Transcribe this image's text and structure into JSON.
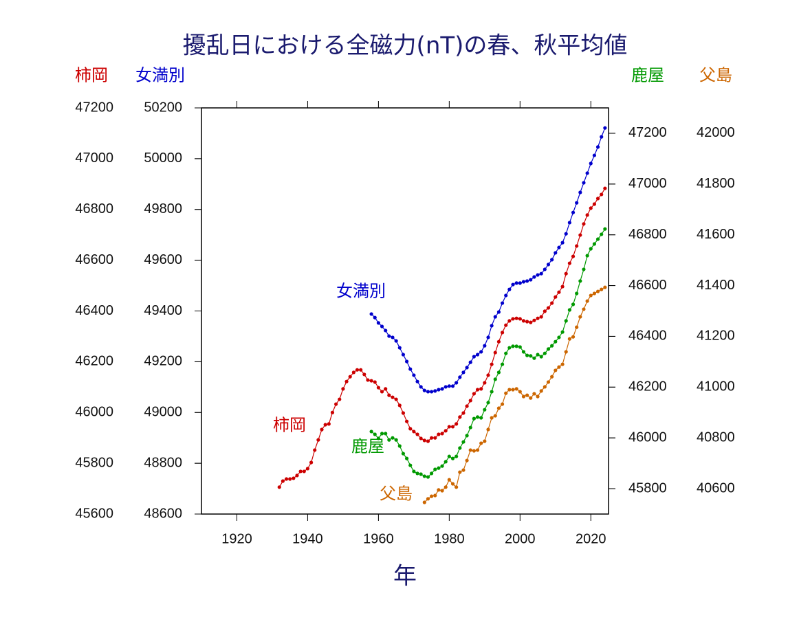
{
  "chart_data": {
    "type": "line",
    "title": "擾乱日における全磁力(nT)の春、秋平均値",
    "xlabel": "年",
    "xlim": [
      1910,
      2025
    ],
    "xticks": [
      1920,
      1940,
      1960,
      1980,
      2000,
      2020
    ],
    "y_axes": [
      {
        "side": "left",
        "ylim": [
          45600,
          47200
        ],
        "yticks": [
          45600,
          45800,
          46000,
          46200,
          46400,
          46600,
          46800,
          47000,
          47200
        ]
      },
      {
        "side": "left",
        "ylim": [
          48600,
          50200
        ],
        "yticks": [
          48600,
          48800,
          49000,
          49200,
          49400,
          49600,
          49800,
          50000,
          50200
        ]
      },
      {
        "side": "right",
        "ylim": [
          45700,
          47300
        ],
        "yticks": [
          45800,
          46000,
          46200,
          46400,
          46600,
          46800,
          47000,
          47200
        ]
      },
      {
        "side": "right",
        "ylim": [
          40500,
          42100
        ],
        "yticks": [
          40600,
          40800,
          41000,
          41200,
          41400,
          41600,
          41800,
          42000
        ]
      }
    ],
    "x": [
      1932,
      1933,
      1934,
      1935,
      1936,
      1937,
      1938,
      1939,
      1940,
      1941,
      1942,
      1943,
      1944,
      1945,
      1946,
      1947,
      1948,
      1949,
      1950,
      1951,
      1952,
      1953,
      1954,
      1955,
      1956,
      1957,
      1958,
      1959,
      1960,
      1961,
      1962,
      1963,
      1964,
      1965,
      1966,
      1967,
      1968,
      1969,
      1970,
      1971,
      1972,
      1973,
      1974,
      1975,
      1976,
      1977,
      1978,
      1979,
      1980,
      1981,
      1982,
      1983,
      1984,
      1985,
      1986,
      1987,
      1988,
      1989,
      1990,
      1991,
      1992,
      1993,
      1994,
      1995,
      1996,
      1997,
      1998,
      1999,
      2000,
      2001,
      2002,
      2003,
      2004,
      2005,
      2006,
      2007,
      2008,
      2009,
      2010,
      2011,
      2012,
      2013,
      2014,
      2015,
      2016,
      2017,
      2018,
      2019,
      2020,
      2021,
      2022,
      2023,
      2024
    ],
    "series": [
      {
        "name": "柿岡",
        "color": "#cc0000",
        "axis": 0,
        "values": [
          45706,
          45730,
          45738,
          45738,
          45741,
          45752,
          45768,
          45768,
          45779,
          45803,
          45852,
          45892,
          45933,
          45952,
          45955,
          46000,
          46033,
          46052,
          46093,
          46122,
          46141,
          46158,
          46168,
          46168,
          46150,
          46128,
          46125,
          46120,
          46098,
          46082,
          46093,
          46068,
          46060,
          46052,
          46028,
          45998,
          45965,
          45936,
          45925,
          45914,
          45898,
          45890,
          45887,
          45900,
          45900,
          45914,
          45917,
          45928,
          45944,
          45944,
          45955,
          45982,
          45998,
          46025,
          46047,
          46074,
          46090,
          46093,
          46117,
          46147,
          46190,
          46236,
          46279,
          46315,
          46344,
          46361,
          46369,
          46371,
          46369,
          46361,
          46358,
          46355,
          46363,
          46371,
          46377,
          46399,
          46412,
          46431,
          46455,
          46474,
          46496,
          46547,
          46588,
          46615,
          46656,
          46699,
          46743,
          46778,
          46805,
          46821,
          46843,
          46859,
          46883
        ]
      },
      {
        "name": "女満別",
        "color": "#0000cc",
        "axis": 1,
        "values": [
          null,
          null,
          null,
          null,
          null,
          null,
          null,
          null,
          null,
          null,
          null,
          null,
          null,
          null,
          null,
          null,
          null,
          null,
          null,
          null,
          null,
          null,
          null,
          null,
          null,
          null,
          49388,
          49374,
          49353,
          49339,
          49323,
          49301,
          49296,
          49282,
          49255,
          49228,
          49201,
          49171,
          49147,
          49122,
          49101,
          49087,
          49082,
          49082,
          49085,
          49090,
          49093,
          49101,
          49104,
          49104,
          49117,
          49139,
          49158,
          49177,
          49198,
          49220,
          49228,
          49239,
          49263,
          49296,
          49342,
          49377,
          49396,
          49431,
          49461,
          49485,
          49504,
          49510,
          49510,
          49515,
          49518,
          49523,
          49534,
          49542,
          49547,
          49564,
          49583,
          49602,
          49629,
          49650,
          49669,
          49704,
          49748,
          49788,
          49826,
          49867,
          49905,
          49943,
          49981,
          50013,
          50046,
          50086,
          50121
        ]
      },
      {
        "name": "鹿屋",
        "color": "#009900",
        "axis": 2,
        "values": [
          null,
          null,
          null,
          null,
          null,
          null,
          null,
          null,
          null,
          null,
          null,
          null,
          null,
          null,
          null,
          null,
          null,
          null,
          null,
          null,
          null,
          null,
          null,
          null,
          null,
          null,
          46025,
          46014,
          45998,
          46017,
          46017,
          45992,
          46000,
          45992,
          45968,
          45938,
          45919,
          45892,
          45868,
          45860,
          45857,
          45849,
          45846,
          45860,
          45876,
          45881,
          45889,
          45906,
          45927,
          45919,
          45927,
          45960,
          45984,
          46009,
          46041,
          46076,
          46082,
          46079,
          46111,
          46139,
          46182,
          46231,
          46258,
          46290,
          46333,
          46355,
          46361,
          46361,
          46358,
          46339,
          46325,
          46323,
          46314,
          46328,
          46320,
          46333,
          46350,
          46363,
          46379,
          46396,
          46417,
          46461,
          46504,
          46526,
          46569,
          46618,
          46664,
          46718,
          46745,
          46764,
          46783,
          46802,
          46823
        ]
      },
      {
        "name": "父島",
        "color": "#cc6600",
        "axis": 3,
        "values": [
          null,
          null,
          null,
          null,
          null,
          null,
          null,
          null,
          null,
          null,
          null,
          null,
          null,
          null,
          null,
          null,
          null,
          null,
          null,
          null,
          null,
          null,
          null,
          null,
          null,
          null,
          null,
          null,
          null,
          null,
          null,
          null,
          null,
          null,
          null,
          null,
          null,
          null,
          null,
          null,
          null,
          40546,
          40560,
          40570,
          40573,
          40595,
          40592,
          40606,
          40635,
          40619,
          40606,
          40665,
          40673,
          40711,
          40752,
          40749,
          40752,
          40779,
          40787,
          40833,
          40879,
          40887,
          40917,
          40933,
          40976,
          40990,
          40990,
          40993,
          40982,
          40963,
          40968,
          40957,
          40974,
          40963,
          40985,
          41001,
          41020,
          41041,
          41066,
          41079,
          41090,
          41139,
          41190,
          41198,
          41236,
          41277,
          41307,
          41339,
          41361,
          41369,
          41377,
          41385,
          41393
        ]
      }
    ]
  }
}
